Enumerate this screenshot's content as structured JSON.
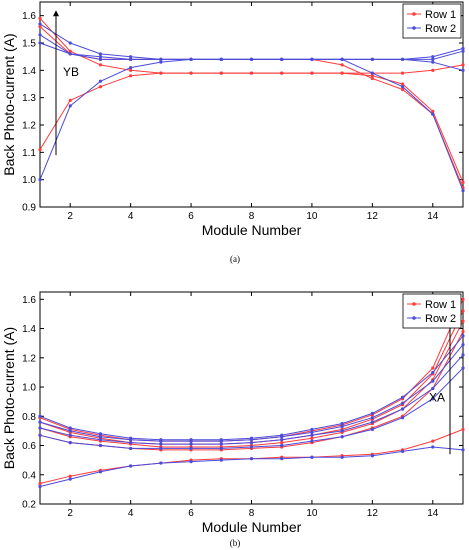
{
  "chart_data": [
    {
      "type": "line",
      "panel_label": "(a)",
      "xlabel": "Module Number",
      "ylabel": "Back Photo-current (A)",
      "xlim": [
        1,
        15
      ],
      "ylim": [
        0.9,
        1.65
      ],
      "xticks": [
        2,
        4,
        6,
        8,
        10,
        12,
        14
      ],
      "yticks": [
        0.9,
        1.0,
        1.1,
        1.2,
        1.3,
        1.4,
        1.5,
        1.6
      ],
      "grid": false,
      "legend_position": "top-right",
      "legend": [
        {
          "label": "Row 1",
          "color": "#ff3b3b"
        },
        {
          "label": "Row 2",
          "color": "#4b4bdc"
        }
      ],
      "annotation": "YB",
      "x": [
        1,
        2,
        3,
        4,
        5,
        6,
        7,
        8,
        9,
        10,
        11,
        12,
        13,
        14,
        15
      ],
      "series": [
        {
          "legend_group": "Row 1",
          "values": [
            1.59,
            1.47,
            1.42,
            1.4,
            1.39,
            1.39,
            1.39,
            1.39,
            1.39,
            1.39,
            1.39,
            1.39,
            1.39,
            1.4,
            1.42
          ]
        },
        {
          "legend_group": "Row 1",
          "values": [
            1.56,
            1.46,
            1.44,
            1.44,
            1.44,
            1.44,
            1.44,
            1.44,
            1.44,
            1.44,
            1.42,
            1.37,
            1.33,
            1.24,
            0.97
          ]
        },
        {
          "legend_group": "Row 1",
          "values": [
            1.11,
            1.29,
            1.34,
            1.38,
            1.39,
            1.39,
            1.39,
            1.39,
            1.39,
            1.39,
            1.39,
            1.38,
            1.35,
            1.25,
            0.99
          ]
        },
        {
          "legend_group": "Row 2",
          "values": [
            1.57,
            1.5,
            1.46,
            1.45,
            1.44,
            1.44,
            1.44,
            1.44,
            1.44,
            1.44,
            1.44,
            1.44,
            1.44,
            1.45,
            1.48
          ]
        },
        {
          "legend_group": "Row 2",
          "values": [
            1.53,
            1.46,
            1.45,
            1.44,
            1.44,
            1.44,
            1.44,
            1.44,
            1.44,
            1.44,
            1.44,
            1.44,
            1.44,
            1.44,
            1.47
          ]
        },
        {
          "legend_group": "Row 2",
          "values": [
            1.5,
            1.46,
            1.44,
            1.44,
            1.44,
            1.44,
            1.44,
            1.44,
            1.44,
            1.44,
            1.44,
            1.44,
            1.44,
            1.43,
            1.4
          ]
        },
        {
          "legend_group": "Row 2",
          "values": [
            1.0,
            1.27,
            1.36,
            1.41,
            1.43,
            1.44,
            1.44,
            1.44,
            1.44,
            1.44,
            1.44,
            1.39,
            1.34,
            1.24,
            0.96
          ]
        }
      ]
    },
    {
      "type": "line",
      "panel_label": "(b)",
      "xlabel": "Module Number",
      "ylabel": "Back Photo-current (A)",
      "xlim": [
        1,
        15
      ],
      "ylim": [
        0.2,
        1.65
      ],
      "xticks": [
        2,
        4,
        6,
        8,
        10,
        12,
        14
      ],
      "yticks": [
        0.2,
        0.4,
        0.6,
        0.8,
        1.0,
        1.2,
        1.4,
        1.6
      ],
      "grid": false,
      "legend_position": "top-right",
      "legend": [
        {
          "label": "Row 1",
          "color": "#ff3b3b"
        },
        {
          "label": "Row 2",
          "color": "#4b4bdc"
        }
      ],
      "annotation": "XA",
      "x": [
        1,
        2,
        3,
        4,
        5,
        6,
        7,
        8,
        9,
        10,
        11,
        12,
        13,
        14,
        15
      ],
      "series": [
        {
          "legend_group": "Row 1",
          "values": [
            0.79,
            0.71,
            0.67,
            0.64,
            0.63,
            0.63,
            0.63,
            0.64,
            0.66,
            0.7,
            0.74,
            0.81,
            0.92,
            1.13,
            1.6
          ]
        },
        {
          "legend_group": "Row 1",
          "values": [
            0.76,
            0.69,
            0.65,
            0.62,
            0.61,
            0.61,
            0.61,
            0.62,
            0.64,
            0.67,
            0.71,
            0.78,
            0.88,
            1.09,
            1.52
          ]
        },
        {
          "legend_group": "Row 1",
          "values": [
            0.72,
            0.66,
            0.63,
            0.61,
            0.59,
            0.59,
            0.59,
            0.6,
            0.62,
            0.65,
            0.69,
            0.75,
            0.85,
            1.05,
            1.45
          ]
        },
        {
          "legend_group": "Row 1",
          "values": [
            0.67,
            0.62,
            0.6,
            0.58,
            0.57,
            0.57,
            0.57,
            0.58,
            0.59,
            0.62,
            0.66,
            0.72,
            0.8,
            0.99,
            1.38
          ]
        },
        {
          "legend_group": "Row 1",
          "values": [
            0.34,
            0.39,
            0.43,
            0.46,
            0.48,
            0.5,
            0.51,
            0.51,
            0.52,
            0.52,
            0.53,
            0.54,
            0.57,
            0.63,
            0.71
          ]
        },
        {
          "legend_group": "Row 2",
          "values": [
            0.8,
            0.72,
            0.68,
            0.65,
            0.64,
            0.64,
            0.64,
            0.65,
            0.67,
            0.71,
            0.75,
            0.82,
            0.93,
            1.1,
            1.35
          ]
        },
        {
          "legend_group": "Row 2",
          "values": [
            0.76,
            0.7,
            0.66,
            0.64,
            0.63,
            0.63,
            0.63,
            0.64,
            0.66,
            0.69,
            0.73,
            0.79,
            0.89,
            1.04,
            1.29
          ]
        },
        {
          "legend_group": "Row 2",
          "values": [
            0.72,
            0.67,
            0.64,
            0.62,
            0.61,
            0.61,
            0.61,
            0.62,
            0.64,
            0.67,
            0.7,
            0.76,
            0.85,
            0.99,
            1.22
          ]
        },
        {
          "legend_group": "Row 2",
          "values": [
            0.67,
            0.62,
            0.6,
            0.58,
            0.58,
            0.58,
            0.58,
            0.59,
            0.6,
            0.63,
            0.66,
            0.71,
            0.79,
            0.92,
            1.13
          ]
        },
        {
          "legend_group": "Row 2",
          "values": [
            0.32,
            0.37,
            0.42,
            0.46,
            0.48,
            0.49,
            0.5,
            0.51,
            0.51,
            0.52,
            0.52,
            0.53,
            0.56,
            0.59,
            0.57
          ]
        }
      ]
    }
  ]
}
